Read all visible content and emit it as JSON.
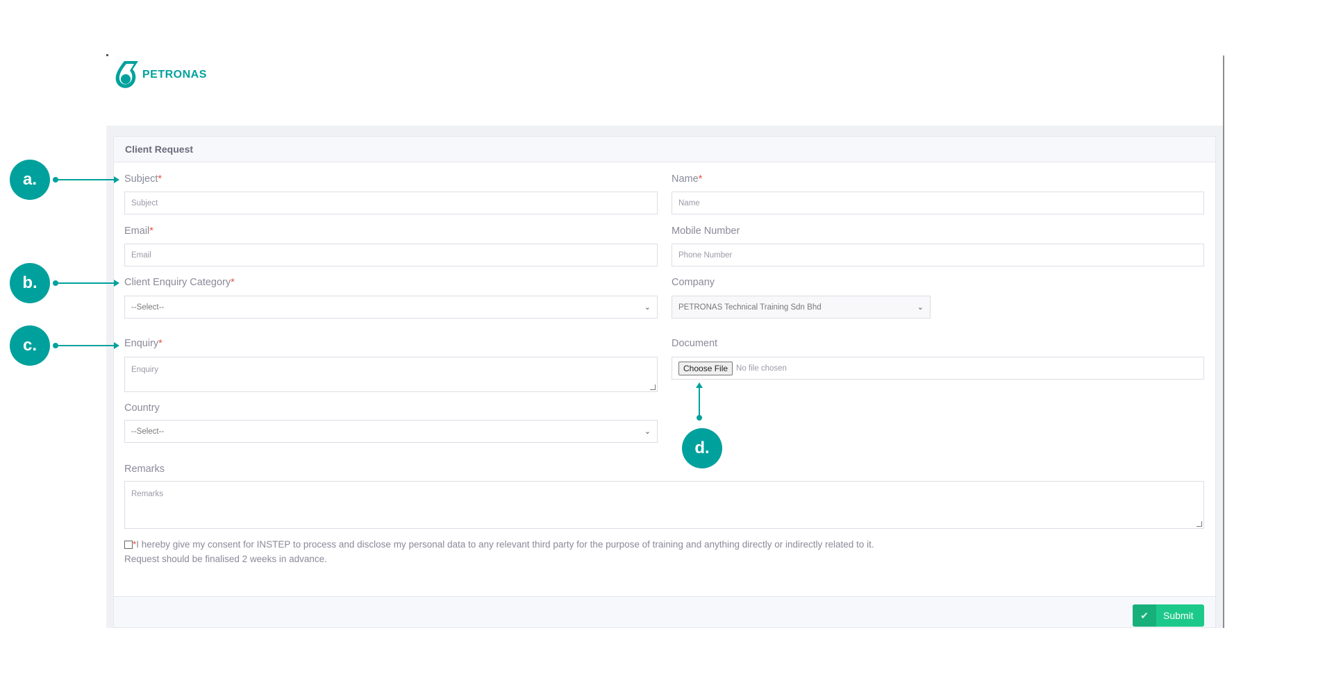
{
  "brand": {
    "name": "PETRONAS",
    "color": "#00a19c"
  },
  "card": {
    "title": "Client Request"
  },
  "fields": {
    "subject": {
      "label": "Subject",
      "required": "*",
      "placeholder": "Subject"
    },
    "name": {
      "label": "Name",
      "required": "*",
      "placeholder": "Name"
    },
    "email": {
      "label": "Email",
      "required": "*",
      "placeholder": "Email"
    },
    "mobile": {
      "label": "Mobile Number",
      "placeholder": "Phone Number"
    },
    "category": {
      "label": "Client Enquiry Category",
      "required": "*",
      "value": "--Select--"
    },
    "company": {
      "label": "Company",
      "value": "PETRONAS Technical Training Sdn Bhd"
    },
    "enquiry": {
      "label": "Enquiry",
      "required": "*",
      "placeholder": "Enquiry"
    },
    "document": {
      "label": "Document",
      "button": "Choose File",
      "status": "No file chosen"
    },
    "country": {
      "label": "Country",
      "value": "--Select--"
    },
    "remarks": {
      "label": "Remarks",
      "placeholder": "Remarks"
    }
  },
  "consent": {
    "required": "*",
    "text": "I hereby give my consent for INSTEP to process and disclose my personal data to any relevant third party for the purpose of training and anything directly or indirectly related to it.",
    "note": "Request should be finalised 2 weeks in advance."
  },
  "submit": {
    "label": "Submit",
    "icon": "check-icon",
    "color": "#1dc98a"
  },
  "annotations": {
    "a": "a.",
    "b": "b.",
    "c": "c.",
    "d": "d."
  }
}
